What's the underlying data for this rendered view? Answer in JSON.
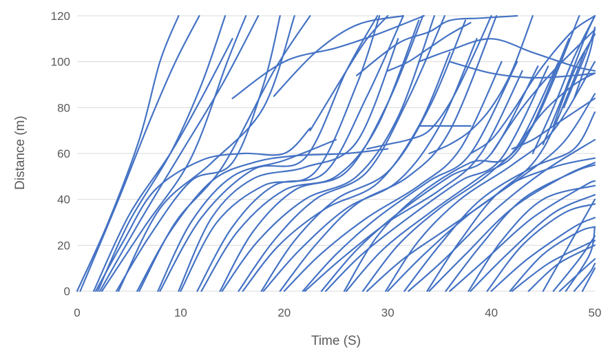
{
  "chart_data": {
    "type": "line",
    "title": "",
    "xlabel": "Time (S)",
    "ylabel": "Distance (m)",
    "xlim": [
      0,
      50
    ],
    "ylim": [
      0,
      120
    ],
    "xticks": [
      0,
      10,
      20,
      30,
      40,
      50
    ],
    "yticks": [
      0,
      20,
      40,
      60,
      80,
      100,
      120
    ],
    "grid": "horizontal",
    "legend": "none",
    "series_color": "#4472c4",
    "series": [
      {
        "x": [
          0,
          3,
          6,
          8,
          9.8
        ],
        "y": [
          0,
          30,
          66,
          100,
          120
        ]
      },
      {
        "x": [
          0.3,
          4,
          7,
          9.5,
          11.8
        ],
        "y": [
          0,
          40,
          74,
          100,
          120
        ]
      },
      {
        "x": [
          1.6,
          5,
          9,
          12,
          15
        ],
        "y": [
          0,
          33,
          60,
          84,
          110
        ]
      },
      {
        "x": [
          1.8,
          4.5,
          7.5,
          12,
          16,
          20,
          22.5
        ],
        "y": [
          0,
          22,
          44,
          57,
          60,
          60,
          71
        ]
      },
      {
        "x": [
          2,
          5,
          9,
          12,
          14.3
        ],
        "y": [
          0,
          30,
          60,
          90,
          120
        ]
      },
      {
        "x": [
          2.2,
          6,
          10,
          14,
          17.5
        ],
        "y": [
          0,
          30,
          60,
          90,
          120
        ]
      },
      {
        "x": [
          2.4,
          6.5,
          11,
          14.5,
          16.3
        ],
        "y": [
          0,
          28,
          58,
          100,
          120
        ]
      },
      {
        "x": [
          3.8,
          7,
          11,
          15,
          18,
          19.6
        ],
        "y": [
          0,
          24,
          48,
          56,
          90,
          120
        ]
      },
      {
        "x": [
          4,
          8,
          13,
          18,
          21
        ],
        "y": [
          0,
          36,
          56,
          80,
          120
        ]
      },
      {
        "x": [
          5.8,
          9,
          13,
          17,
          21,
          26,
          30
        ],
        "y": [
          0,
          26,
          48,
          56,
          59,
          60,
          62
        ]
      },
      {
        "x": [
          6,
          9.5,
          14,
          19,
          22.5
        ],
        "y": [
          0,
          30,
          54,
          96,
          120
        ]
      },
      {
        "x": [
          7.8,
          11,
          15,
          20,
          25
        ],
        "y": [
          0,
          30,
          50,
          57,
          66
        ]
      },
      {
        "x": [
          8,
          12,
          17,
          22,
          26,
          29
        ],
        "y": [
          0,
          32,
          53,
          58,
          96,
          120
        ]
      },
      {
        "x": [
          9.8,
          13,
          17,
          22,
          27,
          31
        ],
        "y": [
          0,
          32,
          49,
          54,
          65,
          110
        ]
      },
      {
        "x": [
          10,
          13.5,
          18,
          23,
          27,
          29.2
        ],
        "y": [
          0,
          30,
          46,
          52,
          90,
          120
        ]
      },
      {
        "x": [
          11.6,
          15,
          19,
          24,
          28,
          31.5
        ],
        "y": [
          0,
          28,
          46,
          52,
          85,
          120
        ]
      },
      {
        "x": [
          12,
          15.5,
          20,
          25,
          29,
          33
        ],
        "y": [
          0,
          26,
          44,
          50,
          72,
          118
        ]
      },
      {
        "x": [
          13.8,
          17,
          21,
          26,
          30,
          33.4
        ],
        "y": [
          0,
          26,
          44,
          52,
          82,
          120
        ]
      },
      {
        "x": [
          14,
          17.5,
          22,
          27,
          31,
          34.5
        ],
        "y": [
          0,
          22,
          40,
          50,
          76,
          120
        ]
      },
      {
        "x": [
          15.6,
          19,
          23,
          28,
          32,
          35.5
        ],
        "y": [
          0,
          22,
          40,
          52,
          84,
          120
        ]
      },
      {
        "x": [
          16,
          19.5,
          24,
          29,
          33,
          36
        ],
        "y": [
          0,
          20,
          36,
          47,
          72,
          104
        ]
      },
      {
        "x": [
          17.8,
          21,
          25,
          30,
          34,
          37.5
        ],
        "y": [
          0,
          22,
          40,
          52,
          80,
          118
        ]
      },
      {
        "x": [
          18,
          21.5,
          26,
          31,
          35,
          38.6
        ],
        "y": [
          0,
          18,
          36,
          48,
          72,
          110
        ]
      },
      {
        "x": [
          19.6,
          23,
          27,
          32,
          36,
          40.5
        ],
        "y": [
          0,
          20,
          38,
          50,
          70,
          120
        ]
      },
      {
        "x": [
          20,
          23.5,
          28,
          33,
          37,
          41
        ],
        "y": [
          0,
          16,
          32,
          46,
          62,
          100
        ]
      },
      {
        "x": [
          21.8,
          25,
          29,
          34,
          38,
          42.5
        ],
        "y": [
          0,
          16,
          32,
          48,
          60,
          100
        ]
      },
      {
        "x": [
          22,
          25.5,
          30,
          35,
          39,
          43
        ],
        "y": [
          0,
          14,
          30,
          44,
          60,
          96
        ]
      },
      {
        "x": [
          23.6,
          27,
          31,
          36,
          40,
          44.5
        ],
        "y": [
          0,
          18,
          34,
          50,
          60,
          98
        ]
      },
      {
        "x": [
          24,
          27.5,
          32,
          37,
          41,
          45.5
        ],
        "y": [
          0,
          16,
          32,
          48,
          58,
          98
        ]
      },
      {
        "x": [
          25.8,
          29,
          33,
          38,
          42,
          46.5
        ],
        "y": [
          0,
          24,
          42,
          56,
          60,
          100
        ]
      },
      {
        "x": [
          26,
          29.5,
          34,
          39,
          43,
          47.5
        ],
        "y": [
          0,
          18,
          34,
          50,
          64,
          110
        ]
      },
      {
        "x": [
          27.6,
          31,
          35,
          40,
          44,
          48.5
        ],
        "y": [
          0,
          20,
          36,
          52,
          72,
          120
        ]
      },
      {
        "x": [
          28,
          31.5,
          36,
          41,
          45,
          49
        ],
        "y": [
          0,
          14,
          28,
          44,
          62,
          104
        ]
      },
      {
        "x": [
          29.8,
          33,
          37,
          42,
          46,
          50
        ],
        "y": [
          0,
          22,
          40,
          55,
          70,
          100
        ]
      },
      {
        "x": [
          30,
          33.5,
          38,
          43,
          47,
          50
        ],
        "y": [
          0,
          16,
          34,
          50,
          65,
          86
        ]
      },
      {
        "x": [
          31.6,
          35,
          39,
          44,
          48,
          50
        ],
        "y": [
          0,
          20,
          40,
          54,
          62,
          78
        ]
      },
      {
        "x": [
          32,
          35.5,
          40,
          45,
          50
        ],
        "y": [
          0,
          14,
          34,
          52,
          66
        ]
      },
      {
        "x": [
          33.8,
          37,
          41,
          46,
          50
        ],
        "y": [
          0,
          22,
          44,
          54,
          58
        ]
      },
      {
        "x": [
          34,
          37.5,
          42,
          47,
          50
        ],
        "y": [
          0,
          16,
          36,
          50,
          56
        ]
      },
      {
        "x": [
          35.6,
          39,
          43,
          48,
          50
        ],
        "y": [
          0,
          20,
          40,
          52,
          55
        ]
      },
      {
        "x": [
          36,
          39.5,
          44,
          49,
          50
        ],
        "y": [
          0,
          14,
          32,
          46,
          48
        ]
      },
      {
        "x": [
          37.8,
          41,
          45,
          50
        ],
        "y": [
          0,
          22,
          40,
          46
        ]
      },
      {
        "x": [
          38,
          41.5,
          46,
          50
        ],
        "y": [
          0,
          16,
          34,
          42
        ]
      },
      {
        "x": [
          39.6,
          43,
          47,
          50
        ],
        "y": [
          0,
          20,
          34,
          38
        ]
      },
      {
        "x": [
          40,
          43.5,
          48,
          50
        ],
        "y": [
          0,
          14,
          28,
          32
        ]
      },
      {
        "x": [
          41.8,
          45,
          48.5,
          50
        ],
        "y": [
          0,
          16,
          26,
          28
        ]
      },
      {
        "x": [
          42,
          45.5,
          49,
          50
        ],
        "y": [
          0,
          12,
          20,
          22
        ]
      },
      {
        "x": [
          43.6,
          46.5,
          50
        ],
        "y": [
          0,
          12,
          20
        ]
      },
      {
        "x": [
          45,
          47.5,
          50
        ],
        "y": [
          0,
          20,
          40
        ]
      },
      {
        "x": [
          46,
          48.5,
          50
        ],
        "y": [
          0,
          14,
          24
        ]
      },
      {
        "x": [
          46.6,
          49,
          50
        ],
        "y": [
          0,
          10,
          14
        ]
      },
      {
        "x": [
          47.2,
          49.5,
          50
        ],
        "y": [
          0,
          16,
          28
        ]
      },
      {
        "x": [
          48,
          49.5,
          50
        ],
        "y": [
          0,
          8,
          12
        ]
      },
      {
        "x": [
          48.8,
          50
        ],
        "y": [
          0,
          10
        ]
      },
      {
        "x": [
          22.5,
          26,
          28,
          30
        ],
        "y": [
          70,
          96,
          110,
          120
        ]
      },
      {
        "x": [
          19,
          23,
          27,
          31.5
        ],
        "y": [
          85,
          104,
          116,
          120
        ]
      },
      {
        "x": [
          15,
          20,
          25,
          29,
          33.5
        ],
        "y": [
          84,
          100,
          106,
          112,
          120
        ]
      },
      {
        "x": [
          27,
          31,
          34,
          36,
          39,
          42.5
        ],
        "y": [
          94,
          108,
          113,
          118,
          119,
          120
        ]
      },
      {
        "x": [
          30,
          32,
          34,
          36,
          38
        ],
        "y": [
          96,
          100,
          106,
          112,
          117
        ]
      },
      {
        "x": [
          33,
          34.5,
          36,
          38
        ],
        "y": [
          72,
          72,
          72,
          72
        ]
      },
      {
        "x": [
          33,
          36,
          40,
          44,
          48,
          50
        ],
        "y": [
          100,
          105,
          110,
          104,
          98,
          96
        ]
      },
      {
        "x": [
          36,
          40,
          44,
          48,
          50
        ],
        "y": [
          100,
          95,
          93,
          94,
          95
        ]
      },
      {
        "x": [
          40,
          43,
          46,
          50
        ],
        "y": [
          60,
          80,
          96,
          114
        ]
      },
      {
        "x": [
          42,
          45,
          48,
          50
        ],
        "y": [
          60,
          78,
          90,
          95
        ]
      },
      {
        "x": [
          44,
          46,
          48,
          50
        ],
        "y": [
          60,
          80,
          102,
          120
        ]
      },
      {
        "x": [
          45,
          47,
          49,
          50
        ],
        "y": [
          64,
          86,
          110,
          120
        ]
      },
      {
        "x": [
          46,
          48,
          50
        ],
        "y": [
          72,
          96,
          112
        ]
      },
      {
        "x": [
          47,
          49,
          50
        ],
        "y": [
          80,
          102,
          114
        ]
      },
      {
        "x": [
          48,
          49.5,
          50
        ],
        "y": [
          84,
          104,
          115
        ]
      },
      {
        "x": [
          28,
          30,
          32,
          34,
          36,
          38,
          40
        ],
        "y": [
          62,
          64,
          66,
          70,
          82,
          100,
          120
        ]
      },
      {
        "x": [
          38,
          40,
          42,
          44,
          46,
          48,
          50
        ],
        "y": [
          60,
          66,
          78,
          92,
          104,
          114,
          120
        ]
      },
      {
        "x": [
          34,
          36,
          38,
          40,
          42,
          44
        ],
        "y": [
          60,
          64,
          70,
          80,
          96,
          120
        ]
      },
      {
        "x": [
          42,
          44,
          46,
          48,
          50
        ],
        "y": [
          62,
          66,
          72,
          78,
          84
        ]
      }
    ]
  }
}
